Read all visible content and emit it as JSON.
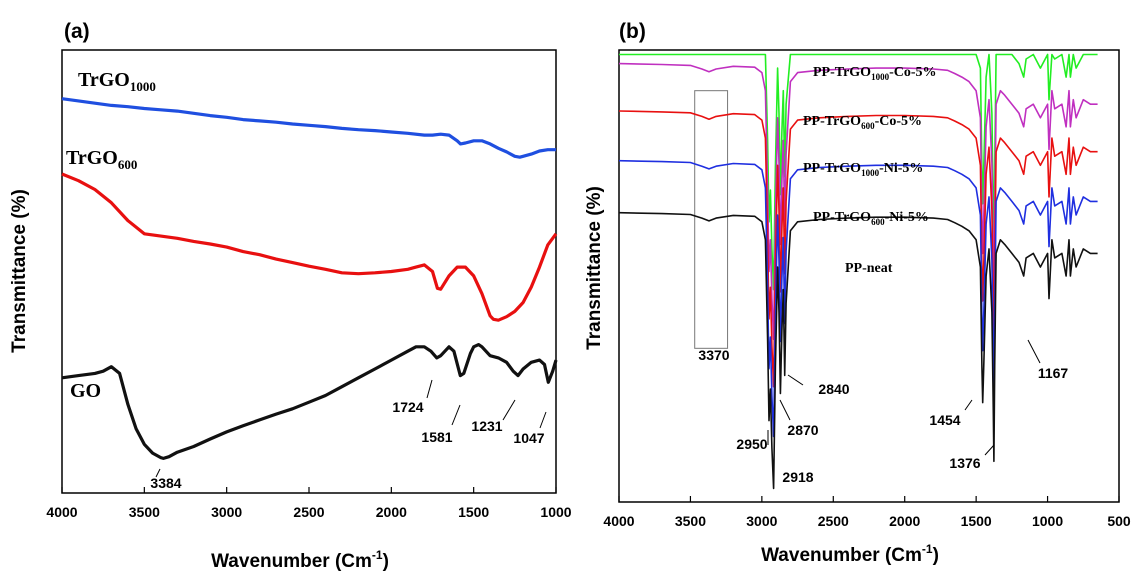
{
  "chart_data": [
    {
      "panel": "(a)",
      "type": "line",
      "ylabel": "Transmittance (%)",
      "xlabel": "Wavenumber (Cm",
      "xlabel_sup": "-1",
      "xlabel_close": ")",
      "xlim": [
        4000,
        1000
      ],
      "x_ticks": [
        4000,
        3500,
        3000,
        2500,
        2000,
        1500,
        1000
      ],
      "series": [
        {
          "name": "TrGO",
          "name_sub": "1000",
          "color": "#1f4fe0",
          "x": [
            4000,
            3900,
            3800,
            3700,
            3600,
            3500,
            3400,
            3300,
            3200,
            3100,
            3000,
            2900,
            2800,
            2700,
            2600,
            2500,
            2400,
            2300,
            2200,
            2100,
            2000,
            1900,
            1800,
            1750,
            1700,
            1650,
            1600,
            1580,
            1550,
            1500,
            1450,
            1400,
            1350,
            1300,
            1250,
            1220,
            1200,
            1150,
            1100,
            1050,
            1000
          ],
          "y": [
            0.89,
            0.885,
            0.88,
            0.875,
            0.872,
            0.868,
            0.865,
            0.862,
            0.857,
            0.852,
            0.848,
            0.843,
            0.84,
            0.837,
            0.833,
            0.83,
            0.827,
            0.823,
            0.82,
            0.818,
            0.815,
            0.812,
            0.808,
            0.808,
            0.81,
            0.808,
            0.795,
            0.788,
            0.79,
            0.795,
            0.795,
            0.788,
            0.778,
            0.77,
            0.76,
            0.758,
            0.76,
            0.765,
            0.772,
            0.775,
            0.775
          ]
        },
        {
          "name": "TrGO",
          "name_sub": "600",
          "color": "#e81010",
          "x": [
            4000,
            3900,
            3800,
            3700,
            3600,
            3500,
            3400,
            3300,
            3200,
            3100,
            3000,
            2900,
            2800,
            2700,
            2600,
            2500,
            2400,
            2300,
            2200,
            2100,
            2000,
            1900,
            1850,
            1800,
            1750,
            1720,
            1700,
            1650,
            1600,
            1550,
            1500,
            1450,
            1400,
            1380,
            1350,
            1300,
            1250,
            1200,
            1150,
            1100,
            1050,
            1000
          ],
          "y": [
            0.72,
            0.705,
            0.685,
            0.655,
            0.615,
            0.585,
            0.58,
            0.575,
            0.568,
            0.562,
            0.555,
            0.545,
            0.538,
            0.528,
            0.52,
            0.512,
            0.505,
            0.497,
            0.495,
            0.497,
            0.5,
            0.505,
            0.51,
            0.515,
            0.5,
            0.462,
            0.46,
            0.49,
            0.51,
            0.51,
            0.49,
            0.45,
            0.4,
            0.392,
            0.39,
            0.398,
            0.41,
            0.43,
            0.465,
            0.51,
            0.56,
            0.585
          ]
        },
        {
          "name": "GO",
          "name_sub": "",
          "color": "#111111",
          "x": [
            4000,
            3900,
            3800,
            3750,
            3700,
            3650,
            3600,
            3550,
            3500,
            3450,
            3400,
            3384,
            3350,
            3300,
            3200,
            3100,
            3000,
            2900,
            2800,
            2700,
            2600,
            2500,
            2400,
            2300,
            2200,
            2100,
            2000,
            1900,
            1850,
            1800,
            1760,
            1724,
            1700,
            1650,
            1620,
            1581,
            1560,
            1520,
            1500,
            1470,
            1450,
            1400,
            1350,
            1300,
            1260,
            1231,
            1200,
            1150,
            1100,
            1070,
            1047,
            1020,
            1000
          ],
          "y": [
            0.26,
            0.265,
            0.27,
            0.275,
            0.285,
            0.27,
            0.2,
            0.145,
            0.11,
            0.09,
            0.08,
            0.078,
            0.082,
            0.092,
            0.105,
            0.122,
            0.138,
            0.152,
            0.165,
            0.178,
            0.19,
            0.205,
            0.22,
            0.24,
            0.26,
            0.28,
            0.3,
            0.32,
            0.33,
            0.33,
            0.32,
            0.305,
            0.31,
            0.33,
            0.32,
            0.265,
            0.27,
            0.315,
            0.33,
            0.335,
            0.33,
            0.31,
            0.305,
            0.295,
            0.275,
            0.265,
            0.28,
            0.295,
            0.3,
            0.29,
            0.25,
            0.275,
            0.3
          ]
        }
      ],
      "series_labels": [
        {
          "name": "TrGO",
          "sub": "1000"
        },
        {
          "name": "TrGO",
          "sub": "600"
        },
        {
          "name": "GO",
          "sub": ""
        }
      ],
      "annotations": [
        "3384",
        "1724",
        "1581",
        "1231",
        "1047"
      ]
    },
    {
      "panel": "(b)",
      "type": "line",
      "ylabel": "Transmittance (%)",
      "xlabel": "Wavenumber (Cm",
      "xlabel_sup": "-1",
      "xlabel_close": ")",
      "xlim": [
        4000,
        500
      ],
      "x_ticks": [
        4000,
        3500,
        3000,
        2500,
        2000,
        1500,
        1000,
        500
      ],
      "box_range": [
        3470,
        3240
      ],
      "series": [
        {
          "name": "PP-neat",
          "color": "#111111",
          "offset": 0.0
        },
        {
          "name": "PP-TrGO600-Ni-5%",
          "color": "#1f2fe0",
          "offset": 0.115
        },
        {
          "name": "PP-TrGO1000-Ni-5%",
          "color": "#e81010",
          "offset": 0.225
        },
        {
          "name": "PP-TrGO600-Co-5%",
          "color": "#c030c0",
          "offset": 0.33
        },
        {
          "name": "PP-TrGO1000-Co-5%",
          "color": "#22ee22",
          "offset": 0.44
        }
      ],
      "series_labels": [
        {
          "pre": "PP-TrGO",
          "sub": "1000",
          "post": "-Co-5%"
        },
        {
          "pre": "PP-TrGO",
          "sub": "600",
          "post": "-Co-5%"
        },
        {
          "pre": "PP-TrGO",
          "sub": "1000",
          "post": "-Ni-5%"
        },
        {
          "pre": "PP-TrGO",
          "sub": "600",
          "post": "-Ni-5%"
        },
        {
          "pre": "PP-neat",
          "sub": "",
          "post": ""
        }
      ],
      "base_spectrum": {
        "x": [
          4000,
          3700,
          3500,
          3420,
          3370,
          3320,
          3200,
          3050,
          3000,
          2975,
          2960,
          2950,
          2940,
          2930,
          2918,
          2905,
          2890,
          2880,
          2870,
          2860,
          2850,
          2840,
          2830,
          2800,
          2750,
          2600,
          2400,
          2200,
          2000,
          1800,
          1700,
          1650,
          1600,
          1550,
          1500,
          1470,
          1460,
          1454,
          1445,
          1430,
          1410,
          1390,
          1380,
          1376,
          1370,
          1360,
          1330,
          1300,
          1250,
          1200,
          1167,
          1150,
          1100,
          1050,
          1000,
          990,
          970,
          950,
          900,
          870,
          850,
          840,
          820,
          800,
          750,
          700,
          650
        ],
        "y": [
          0.64,
          0.638,
          0.636,
          0.628,
          0.622,
          0.628,
          0.634,
          0.632,
          0.62,
          0.58,
          0.36,
          0.18,
          0.25,
          0.12,
          0.03,
          0.3,
          0.52,
          0.42,
          0.24,
          0.38,
          0.47,
          0.28,
          0.44,
          0.6,
          0.62,
          0.625,
          0.628,
          0.63,
          0.63,
          0.628,
          0.625,
          0.618,
          0.61,
          0.6,
          0.58,
          0.52,
          0.3,
          0.22,
          0.32,
          0.5,
          0.56,
          0.42,
          0.2,
          0.09,
          0.3,
          0.55,
          0.58,
          0.57,
          0.55,
          0.53,
          0.5,
          0.54,
          0.55,
          0.52,
          0.55,
          0.45,
          0.58,
          0.54,
          0.55,
          0.5,
          0.58,
          0.5,
          0.56,
          0.52,
          0.56,
          0.55,
          0.55
        ]
      },
      "annotations": [
        "3370",
        "2950",
        "2918",
        "2870",
        "2840",
        "1454",
        "1376",
        "1167"
      ]
    }
  ]
}
